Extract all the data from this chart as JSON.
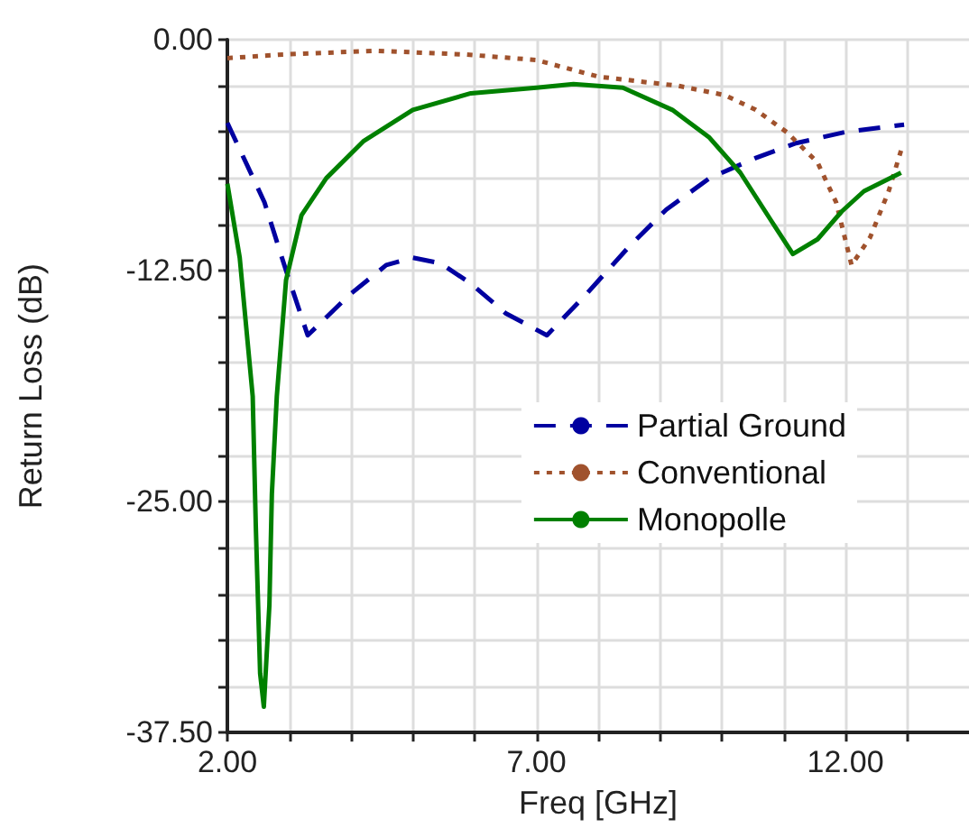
{
  "chart_data": {
    "type": "line",
    "xlabel": "Freq [GHz]",
    "ylabel": "Return Loss (dB)",
    "xlim": [
      2,
      14
    ],
    "ylim": [
      -37.5,
      0
    ],
    "xticks": [
      {
        "value": 2,
        "label": "2.00"
      },
      {
        "value": 3,
        "label": null
      },
      {
        "value": 4,
        "label": null
      },
      {
        "value": 5,
        "label": null
      },
      {
        "value": 6,
        "label": null
      },
      {
        "value": 7,
        "label": "7.00"
      },
      {
        "value": 8,
        "label": null
      },
      {
        "value": 9,
        "label": null
      },
      {
        "value": 10,
        "label": null
      },
      {
        "value": 11,
        "label": null
      },
      {
        "value": 12,
        "label": "12.00"
      },
      {
        "value": 13,
        "label": null
      }
    ],
    "yticks": [
      {
        "value": -37.5,
        "label": "-37.50"
      },
      {
        "value": -35,
        "label": null
      },
      {
        "value": -32.5,
        "label": null
      },
      {
        "value": -30,
        "label": null
      },
      {
        "value": -27.5,
        "label": null
      },
      {
        "value": -25,
        "label": "-25.00"
      },
      {
        "value": -22.5,
        "label": null
      },
      {
        "value": -20,
        "label": null
      },
      {
        "value": -17.5,
        "label": null
      },
      {
        "value": -15,
        "label": null
      },
      {
        "value": -12.5,
        "label": "-12.50"
      },
      {
        "value": -10,
        "label": null
      },
      {
        "value": -7.5,
        "label": null
      },
      {
        "value": -5,
        "label": null
      },
      {
        "value": -2.5,
        "label": null
      },
      {
        "value": 0,
        "label": "0.00"
      }
    ],
    "grid": true,
    "legend": "right",
    "marker": "none",
    "series": [
      {
        "name": "Partial Ground",
        "color": "#0000a0",
        "line_style": "dashed",
        "x": [
          2,
          2.6,
          2.95,
          3.3,
          3.98,
          4.57,
          5.0,
          5.45,
          5.94,
          6.5,
          7.17,
          7.8,
          8.5,
          9.1,
          9.8,
          10.55,
          11.2,
          12.0,
          12.95
        ],
        "values": [
          -4.5,
          -8.8,
          -12.5,
          -16.0,
          -13.8,
          -12.2,
          -11.8,
          -12.1,
          -13.2,
          -14.8,
          -16.0,
          -13.8,
          -11.2,
          -9.2,
          -7.5,
          -6.4,
          -5.6,
          -5.0,
          -4.6
        ]
      },
      {
        "name": "Conventional",
        "color": "#a0522d",
        "line_style": "dotted",
        "x": [
          2,
          2.9,
          4.4,
          5.85,
          7.0,
          8.0,
          9.3,
          10.05,
          10.55,
          11.05,
          11.55,
          11.85,
          12.1,
          12.4,
          12.7,
          12.9
        ],
        "values": [
          -1.0,
          -0.8,
          -0.6,
          -0.8,
          -1.1,
          -2.0,
          -2.5,
          -3.0,
          -3.8,
          -5.0,
          -6.65,
          -8.8,
          -12.2,
          -10.7,
          -8.2,
          -6.0
        ]
      },
      {
        "name": "Monopolle",
        "color": "#008000",
        "line_style": "solid",
        "x": [
          2,
          2.2,
          2.41,
          2.46,
          2.53,
          2.59,
          2.68,
          2.72,
          2.8,
          2.95,
          3.2,
          3.6,
          4.2,
          5.0,
          5.94,
          7.0,
          7.6,
          8.4,
          9.2,
          9.8,
          10.3,
          10.8,
          11.15,
          11.55,
          11.94,
          12.3,
          12.9
        ],
        "values": [
          -7.8,
          -11.8,
          -19.3,
          -26.3,
          -34.3,
          -36.1,
          -30.6,
          -24.6,
          -19.3,
          -13.0,
          -9.5,
          -7.5,
          -5.5,
          -3.8,
          -2.9,
          -2.6,
          -2.4,
          -2.6,
          -3.8,
          -5.3,
          -7.2,
          -9.8,
          -11.6,
          -10.8,
          -9.3,
          -8.2,
          -7.2
        ]
      }
    ]
  }
}
